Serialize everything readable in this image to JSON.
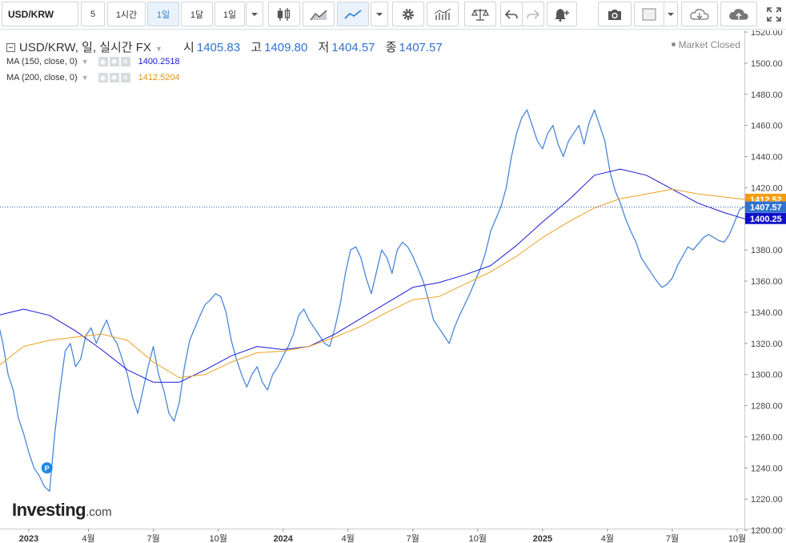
{
  "toolbar": {
    "symbol": "USD/KRW",
    "intervals": [
      "5",
      "1시간",
      "1일",
      "1달",
      "1일"
    ],
    "active_interval_index": 2,
    "accent_color": "#2a7bd5"
  },
  "legend": {
    "title": "USD/KRW, 일, 실시간 FX",
    "open_label": "시",
    "open": "1405.83",
    "high_label": "고",
    "high": "1409.80",
    "low_label": "저",
    "low": "1404.57",
    "close_label": "종",
    "close": "1407.57"
  },
  "indicators": [
    {
      "label": "MA (150, close, 0)",
      "value": "1400.2518",
      "color": "#1a1ad6"
    },
    {
      "label": "MA (200, close, 0)",
      "value": "1412.5204",
      "color": "#f0a020"
    }
  ],
  "market_status": "Market Closed",
  "logo": {
    "text": "Investing",
    "suffix": ".com"
  },
  "price_labels": {
    "ma200": "1412.52",
    "close": "1407.57",
    "ma150": "1400.25"
  },
  "chart_data": {
    "type": "line",
    "ylim": [
      1200,
      1520
    ],
    "y_ticks": [
      1200,
      1220,
      1240,
      1260,
      1280,
      1300,
      1320,
      1340,
      1360,
      1380,
      1400,
      1420,
      1440,
      1460,
      1480,
      1500,
      1520
    ],
    "x_ticks": [
      {
        "label": "2023",
        "x": 0.02
      },
      {
        "label": "4월",
        "x": 0.25
      },
      {
        "label": "7월",
        "x": 0.5
      },
      {
        "label": "10월",
        "x": 0.75
      },
      {
        "label": "2024",
        "x": 1.0
      },
      {
        "label": "4월",
        "x": 1.25
      },
      {
        "label": "7월",
        "x": 1.5
      },
      {
        "label": "10월",
        "x": 1.75
      },
      {
        "label": "2025",
        "x": 2.0
      },
      {
        "label": "4월",
        "x": 2.25
      },
      {
        "label": "7월",
        "x": 2.5
      },
      {
        "label": "10월",
        "x": 2.75
      }
    ],
    "series": [
      {
        "name": "USD/KRW",
        "color": "#4a86d8",
        "x": [
          -0.1,
          -0.08,
          -0.06,
          -0.04,
          -0.02,
          0.0,
          0.02,
          0.04,
          0.06,
          0.08,
          0.1,
          0.12,
          0.14,
          0.16,
          0.18,
          0.2,
          0.22,
          0.24,
          0.26,
          0.28,
          0.3,
          0.32,
          0.34,
          0.36,
          0.38,
          0.4,
          0.42,
          0.44,
          0.46,
          0.48,
          0.5,
          0.52,
          0.54,
          0.56,
          0.58,
          0.6,
          0.62,
          0.64,
          0.66,
          0.68,
          0.7,
          0.72,
          0.74,
          0.76,
          0.78,
          0.8,
          0.82,
          0.84,
          0.86,
          0.88,
          0.9,
          0.92,
          0.94,
          0.96,
          0.98,
          1.0,
          1.02,
          1.04,
          1.06,
          1.08,
          1.1,
          1.12,
          1.14,
          1.16,
          1.18,
          1.2,
          1.22,
          1.24,
          1.26,
          1.28,
          1.3,
          1.32,
          1.34,
          1.36,
          1.38,
          1.4,
          1.42,
          1.44,
          1.46,
          1.48,
          1.5,
          1.52,
          1.54,
          1.56,
          1.58,
          1.6,
          1.62,
          1.64,
          1.66,
          1.68,
          1.7,
          1.72,
          1.74,
          1.76,
          1.78,
          1.8,
          1.82,
          1.84,
          1.86,
          1.88,
          1.9,
          1.92,
          1.94,
          1.96,
          1.98,
          2.0,
          2.02,
          2.04,
          2.06,
          2.08,
          2.1,
          2.12,
          2.14,
          2.16,
          2.18,
          2.2,
          2.22,
          2.24,
          2.26,
          2.28,
          2.3,
          2.32,
          2.34,
          2.36,
          2.38,
          2.4,
          2.42,
          2.44,
          2.46,
          2.48,
          2.5,
          2.52,
          2.54,
          2.56,
          2.58,
          2.6,
          2.62,
          2.64,
          2.66,
          2.68,
          2.7,
          2.72,
          2.74,
          2.76,
          2.78
        ],
        "values": [
          1335,
          1320,
          1300,
          1290,
          1272,
          1262,
          1250,
          1240,
          1235,
          1228,
          1225,
          1262,
          1290,
          1315,
          1320,
          1305,
          1310,
          1325,
          1330,
          1320,
          1328,
          1335,
          1325,
          1320,
          1310,
          1300,
          1285,
          1275,
          1290,
          1305,
          1318,
          1300,
          1290,
          1275,
          1270,
          1282,
          1305,
          1322,
          1330,
          1338,
          1345,
          1348,
          1352,
          1350,
          1340,
          1322,
          1310,
          1300,
          1292,
          1300,
          1305,
          1295,
          1290,
          1300,
          1305,
          1312,
          1318,
          1326,
          1338,
          1342,
          1335,
          1330,
          1325,
          1320,
          1318,
          1330,
          1345,
          1365,
          1380,
          1382,
          1375,
          1362,
          1352,
          1366,
          1380,
          1375,
          1365,
          1380,
          1385,
          1382,
          1376,
          1368,
          1360,
          1348,
          1335,
          1330,
          1325,
          1320,
          1330,
          1338,
          1345,
          1352,
          1360,
          1368,
          1378,
          1392,
          1400,
          1408,
          1420,
          1440,
          1455,
          1465,
          1470,
          1460,
          1450,
          1445,
          1455,
          1460,
          1448,
          1440,
          1450,
          1455,
          1460,
          1448,
          1462,
          1470,
          1460,
          1450,
          1430,
          1418,
          1410,
          1400,
          1392,
          1385,
          1375,
          1370,
          1365,
          1360,
          1356,
          1358,
          1362,
          1370,
          1376,
          1382,
          1380,
          1384,
          1388,
          1390,
          1388,
          1386,
          1385,
          1390,
          1398,
          1406,
          1408
        ],
        "values_note": "read approximately from the plotted line"
      },
      {
        "name": "MA (150, close, 0)",
        "color": "#1a1ad6",
        "x": [
          -0.1,
          0.0,
          0.1,
          0.2,
          0.3,
          0.4,
          0.5,
          0.6,
          0.7,
          0.8,
          0.9,
          1.0,
          1.1,
          1.2,
          1.3,
          1.4,
          1.5,
          1.6,
          1.7,
          1.8,
          1.9,
          2.0,
          2.1,
          2.2,
          2.3,
          2.4,
          2.5,
          2.6,
          2.7,
          2.78
        ],
        "values": [
          1338,
          1342,
          1338,
          1328,
          1316,
          1303,
          1295,
          1295,
          1303,
          1312,
          1318,
          1316,
          1318,
          1326,
          1336,
          1346,
          1356,
          1359,
          1364,
          1370,
          1383,
          1398,
          1412,
          1428,
          1432,
          1428,
          1419,
          1410,
          1404,
          1400
        ]
      },
      {
        "name": "MA (200, close, 0)",
        "color": "#f0a020",
        "x": [
          -0.1,
          0.0,
          0.1,
          0.2,
          0.3,
          0.4,
          0.5,
          0.6,
          0.7,
          0.8,
          0.9,
          1.0,
          1.1,
          1.2,
          1.3,
          1.4,
          1.5,
          1.6,
          1.7,
          1.8,
          1.9,
          2.0,
          2.1,
          2.2,
          2.3,
          2.4,
          2.5,
          2.6,
          2.7,
          2.78
        ],
        "values": [
          1305,
          1318,
          1322,
          1324,
          1326,
          1322,
          1308,
          1298,
          1300,
          1308,
          1314,
          1315,
          1318,
          1324,
          1331,
          1340,
          1348,
          1350,
          1358,
          1366,
          1376,
          1388,
          1398,
          1407,
          1413,
          1416,
          1419,
          1416,
          1414,
          1412.5
        ]
      }
    ],
    "annotations": [
      {
        "label": "P",
        "x": 0.09,
        "y": 1240
      }
    ],
    "grid": true,
    "legend_placement": "top-left"
  }
}
